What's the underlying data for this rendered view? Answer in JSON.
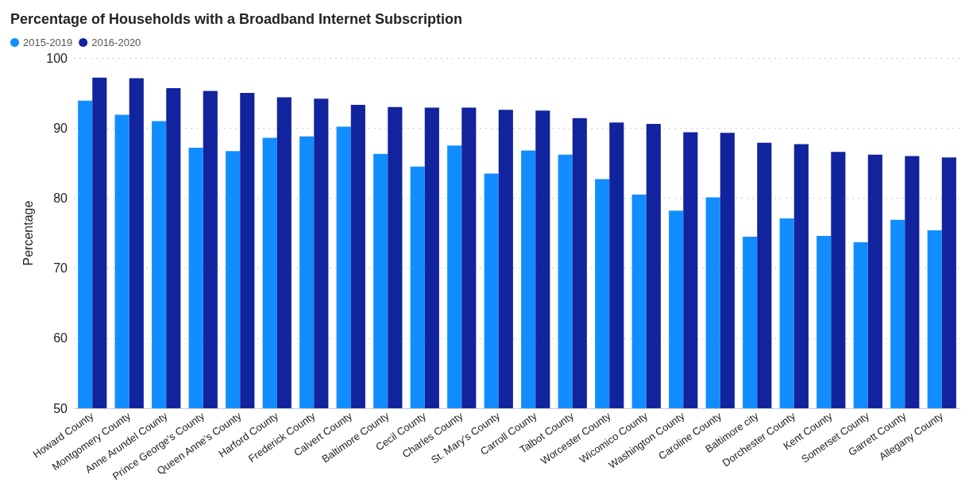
{
  "chart_data": {
    "type": "bar",
    "title": "Percentage of Households with a Broadband Internet Subscription",
    "ylabel": "Percentage",
    "categories": [
      "Howard County",
      "Montgomery County",
      "Anne Arundel County",
      "Prince George's County",
      "Queen Anne's County",
      "Harford County",
      "Frederick County",
      "Calvert County",
      "Baltimore County",
      "Cecil County",
      "Charles County",
      "St. Mary's County",
      "Carroll County",
      "Talbot County",
      "Worcester County",
      "Wicomico County",
      "Washington County",
      "Caroline County",
      "Baltimore city",
      "Dorchester County",
      "Kent County",
      "Somerset County",
      "Garrett County",
      "Allegany County"
    ],
    "series": [
      {
        "name": "2015-2019",
        "color": "#118dff",
        "values": [
          93.9,
          91.9,
          91.0,
          87.2,
          86.7,
          88.6,
          88.8,
          90.2,
          86.3,
          84.5,
          87.5,
          83.5,
          86.8,
          86.2,
          82.7,
          80.5,
          78.2,
          80.1,
          74.5,
          77.1,
          74.6,
          73.7,
          76.9,
          75.4
        ]
      },
      {
        "name": "2016-2020",
        "color": "#12239e",
        "values": [
          97.2,
          97.1,
          95.7,
          95.3,
          95.0,
          94.4,
          94.2,
          93.3,
          93.0,
          92.9,
          92.9,
          92.6,
          92.5,
          91.4,
          90.8,
          90.6,
          89.4,
          89.3,
          87.9,
          87.7,
          86.6,
          86.2,
          86.0,
          85.8
        ]
      }
    ],
    "ylim": [
      50,
      100
    ],
    "yticks": [
      50,
      60,
      70,
      80,
      90,
      100
    ],
    "grid": "y",
    "legend": "top left"
  }
}
